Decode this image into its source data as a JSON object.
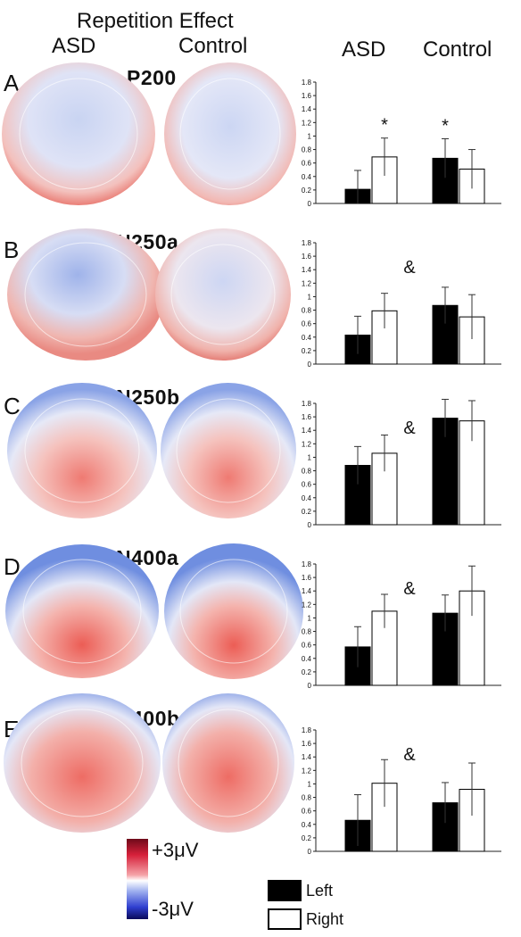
{
  "header": {
    "title": "Repetition Effect",
    "topo_asd": "ASD",
    "topo_control": "Control",
    "bar_asd": "ASD",
    "bar_control": "Control"
  },
  "colors": {
    "left": "#000000",
    "right": "#ffffff",
    "positive": "#e8453c",
    "negative": "#3a64d8"
  },
  "chart_data": [
    {
      "type": "bar",
      "panel": "A",
      "title": "P200",
      "categories": [
        "ASD",
        "Control"
      ],
      "series": [
        {
          "name": "Left",
          "values": [
            0.21,
            0.67
          ],
          "errors": [
            0.28,
            0.29
          ]
        },
        {
          "name": "Right",
          "values": [
            0.69,
            0.51
          ],
          "errors": [
            0.28,
            0.29
          ]
        }
      ],
      "ylim": [
        0,
        1.8
      ],
      "yticks": [
        "0",
        "0.2",
        "0.4",
        "0.6",
        "0.8",
        "1",
        "1.2",
        "1.4",
        "1.6",
        "1.8"
      ],
      "annotations": [
        {
          "text": "*",
          "group": 0
        },
        {
          "text": "*",
          "group": 1
        }
      ]
    },
    {
      "type": "bar",
      "panel": "B",
      "title": "N250a",
      "categories": [
        "ASD",
        "Control"
      ],
      "series": [
        {
          "name": "Left",
          "values": [
            0.43,
            0.87
          ],
          "errors": [
            0.28,
            0.27
          ]
        },
        {
          "name": "Right",
          "values": [
            0.79,
            0.7
          ],
          "errors": [
            0.26,
            0.33
          ]
        }
      ],
      "ylim": [
        0,
        1.8
      ],
      "yticks": [
        "0",
        "0.2",
        "0.4",
        "0.6",
        "0.8",
        "1",
        "1.2",
        "1.4",
        "1.6",
        "1.8"
      ],
      "annotations": [
        {
          "text": "&",
          "group": -1
        }
      ]
    },
    {
      "type": "bar",
      "panel": "C",
      "title": "N250b",
      "categories": [
        "ASD",
        "Control"
      ],
      "series": [
        {
          "name": "Left",
          "values": [
            0.88,
            1.58
          ],
          "errors": [
            0.28,
            0.28
          ]
        },
        {
          "name": "Right",
          "values": [
            1.06,
            1.54
          ],
          "errors": [
            0.27,
            0.3
          ]
        }
      ],
      "ylim": [
        0,
        1.8
      ],
      "yticks": [
        "0",
        "0.2",
        "0.4",
        "0.6",
        "0.8",
        "1",
        "1.2",
        "1.4",
        "1.6",
        "1.8"
      ],
      "annotations": [
        {
          "text": "&",
          "group": -1
        }
      ]
    },
    {
      "type": "bar",
      "panel": "D",
      "title": "N400a",
      "categories": [
        "ASD",
        "Control"
      ],
      "series": [
        {
          "name": "Left",
          "values": [
            0.57,
            1.07
          ],
          "errors": [
            0.3,
            0.27
          ]
        },
        {
          "name": "Right",
          "values": [
            1.1,
            1.4
          ],
          "errors": [
            0.25,
            0.37
          ]
        }
      ],
      "ylim": [
        0,
        1.8
      ],
      "yticks": [
        "0",
        "0.2",
        "0.4",
        "0.6",
        "0.8",
        "1",
        "1.2",
        "1.4",
        "1.6",
        "1.8"
      ],
      "annotations": [
        {
          "text": "&",
          "group": -1
        }
      ]
    },
    {
      "type": "bar",
      "panel": "E",
      "title": "N400b",
      "categories": [
        "ASD",
        "Control"
      ],
      "series": [
        {
          "name": "Left",
          "values": [
            0.46,
            0.72
          ],
          "errors": [
            0.38,
            0.3
          ]
        },
        {
          "name": "Right",
          "values": [
            1.01,
            0.92
          ],
          "errors": [
            0.35,
            0.39
          ]
        }
      ],
      "ylim": [
        0,
        1.8
      ],
      "yticks": [
        "0",
        "0.2",
        "0.4",
        "0.6",
        "0.8",
        "1",
        "1.2",
        "1.4",
        "1.6",
        "1.8"
      ],
      "annotations": [
        {
          "text": "&",
          "group": -1
        }
      ]
    }
  ],
  "colorbar": {
    "max_label": "+3μV",
    "min_label": "-3μV"
  },
  "legend": {
    "left_label": "Left",
    "right_label": "Right"
  }
}
